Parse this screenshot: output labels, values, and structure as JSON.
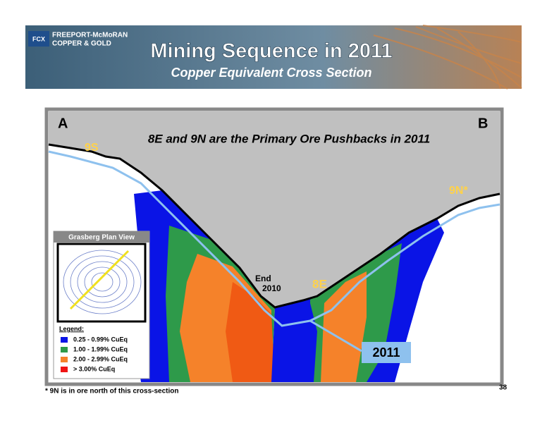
{
  "header": {
    "logo_line1": "FREEPORT-McMoRAN",
    "logo_line2": "COPPER & GOLD",
    "logo_mark": "FCX",
    "title": "Mining Sequence in 2011",
    "subtitle": "Copper Equivalent Cross Section"
  },
  "section": {
    "label_left": "A",
    "label_right": "B",
    "headline": "8E and 9N are the Primary Ore Pushbacks in 2011",
    "label_9s": "9S",
    "label_9n": "9N*",
    "label_end": "End",
    "label_end_year": "2010",
    "label_8e": "8E",
    "label_2011": "2011"
  },
  "inset": {
    "title": "Grasberg Plan View"
  },
  "legend": {
    "title": "Legend:",
    "items": [
      "0.25 - 0.99% CuEq",
      "1.00 - 1.99% CuEq",
      "2.00 - 2.99% CuEq",
      "> 3.00% CuEq"
    ]
  },
  "footnote": "* 9N is in ore north of this cross-section",
  "page_number": "38"
}
